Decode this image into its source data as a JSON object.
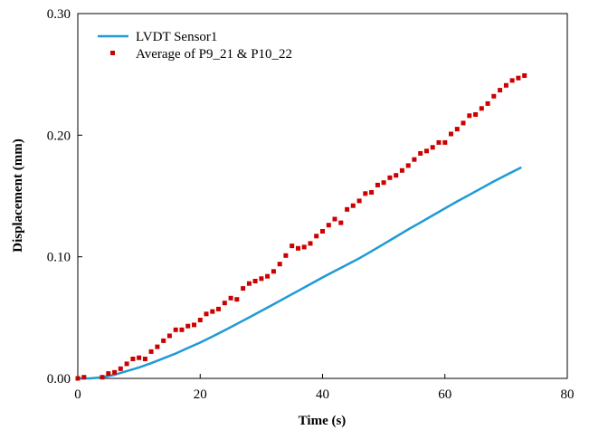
{
  "chart_data": {
    "type": "scatter",
    "title": "",
    "xlabel": "Time (s)",
    "ylabel": "Displacement (mm)",
    "xlim": [
      0,
      80
    ],
    "ylim": [
      0,
      0.3
    ],
    "x_ticks": [
      0,
      20,
      40,
      60,
      80
    ],
    "x_tick_labels": [
      "0",
      "20",
      "40",
      "60",
      "80"
    ],
    "y_ticks": [
      0,
      0.1,
      0.2,
      0.3
    ],
    "y_tick_labels": [
      "0.00",
      "0.10",
      "0.20",
      "0.30"
    ],
    "grid": false,
    "legend_position": "top-left",
    "series": [
      {
        "name": "LVDT Sensor1",
        "type": "line",
        "color": "#1f9ad6",
        "x": [
          0,
          2,
          4,
          6,
          8,
          10,
          12,
          14,
          16,
          18,
          20,
          22,
          24,
          26,
          28,
          30,
          32,
          34,
          36,
          38,
          40,
          42,
          44,
          46,
          48,
          50,
          52,
          54,
          56,
          58,
          60,
          62,
          64,
          66,
          68,
          70,
          72.5
        ],
        "y": [
          0,
          0,
          0.001,
          0.003,
          0.006,
          0.009,
          0.0125,
          0.0165,
          0.0205,
          0.025,
          0.0295,
          0.0345,
          0.0395,
          0.0448,
          0.0502,
          0.0555,
          0.061,
          0.0665,
          0.072,
          0.0775,
          0.083,
          0.0883,
          0.0935,
          0.0988,
          0.1045,
          0.1105,
          0.1165,
          0.1225,
          0.1282,
          0.134,
          0.1398,
          0.1455,
          0.151,
          0.1565,
          0.162,
          0.1672,
          0.1735
        ]
      },
      {
        "name": "Average of P9_21 & P10_22",
        "type": "scatter",
        "color": "#cc0000",
        "x": [
          0,
          1,
          4,
          5,
          6,
          7,
          8,
          9,
          10,
          11,
          12,
          13,
          14,
          15,
          16,
          17,
          18,
          19,
          20,
          21,
          22,
          23,
          24,
          25,
          26,
          27,
          28,
          29,
          30,
          31,
          32,
          33,
          34,
          35,
          36,
          37,
          38,
          39,
          40,
          41,
          42,
          43,
          44,
          45,
          46,
          47,
          48,
          49,
          50,
          51,
          52,
          53,
          54,
          55,
          56,
          57,
          58,
          59,
          60,
          61,
          62,
          63,
          64,
          65,
          66,
          67,
          68,
          69,
          70,
          71,
          72,
          73
        ],
        "y": [
          0,
          0.001,
          0.001,
          0.004,
          0.005,
          0.008,
          0.012,
          0.016,
          0.017,
          0.016,
          0.022,
          0.026,
          0.031,
          0.035,
          0.04,
          0.04,
          0.043,
          0.044,
          0.048,
          0.053,
          0.055,
          0.057,
          0.062,
          0.066,
          0.065,
          0.074,
          0.078,
          0.08,
          0.082,
          0.084,
          0.088,
          0.094,
          0.101,
          0.109,
          0.107,
          0.108,
          0.111,
          0.117,
          0.121,
          0.126,
          0.131,
          0.128,
          0.139,
          0.142,
          0.146,
          0.152,
          0.153,
          0.159,
          0.161,
          0.165,
          0.167,
          0.171,
          0.175,
          0.18,
          0.185,
          0.187,
          0.19,
          0.194,
          0.194,
          0.201,
          0.205,
          0.21,
          0.216,
          0.217,
          0.222,
          0.226,
          0.232,
          0.237,
          0.241,
          0.245,
          0.247,
          0.249
        ]
      }
    ]
  }
}
